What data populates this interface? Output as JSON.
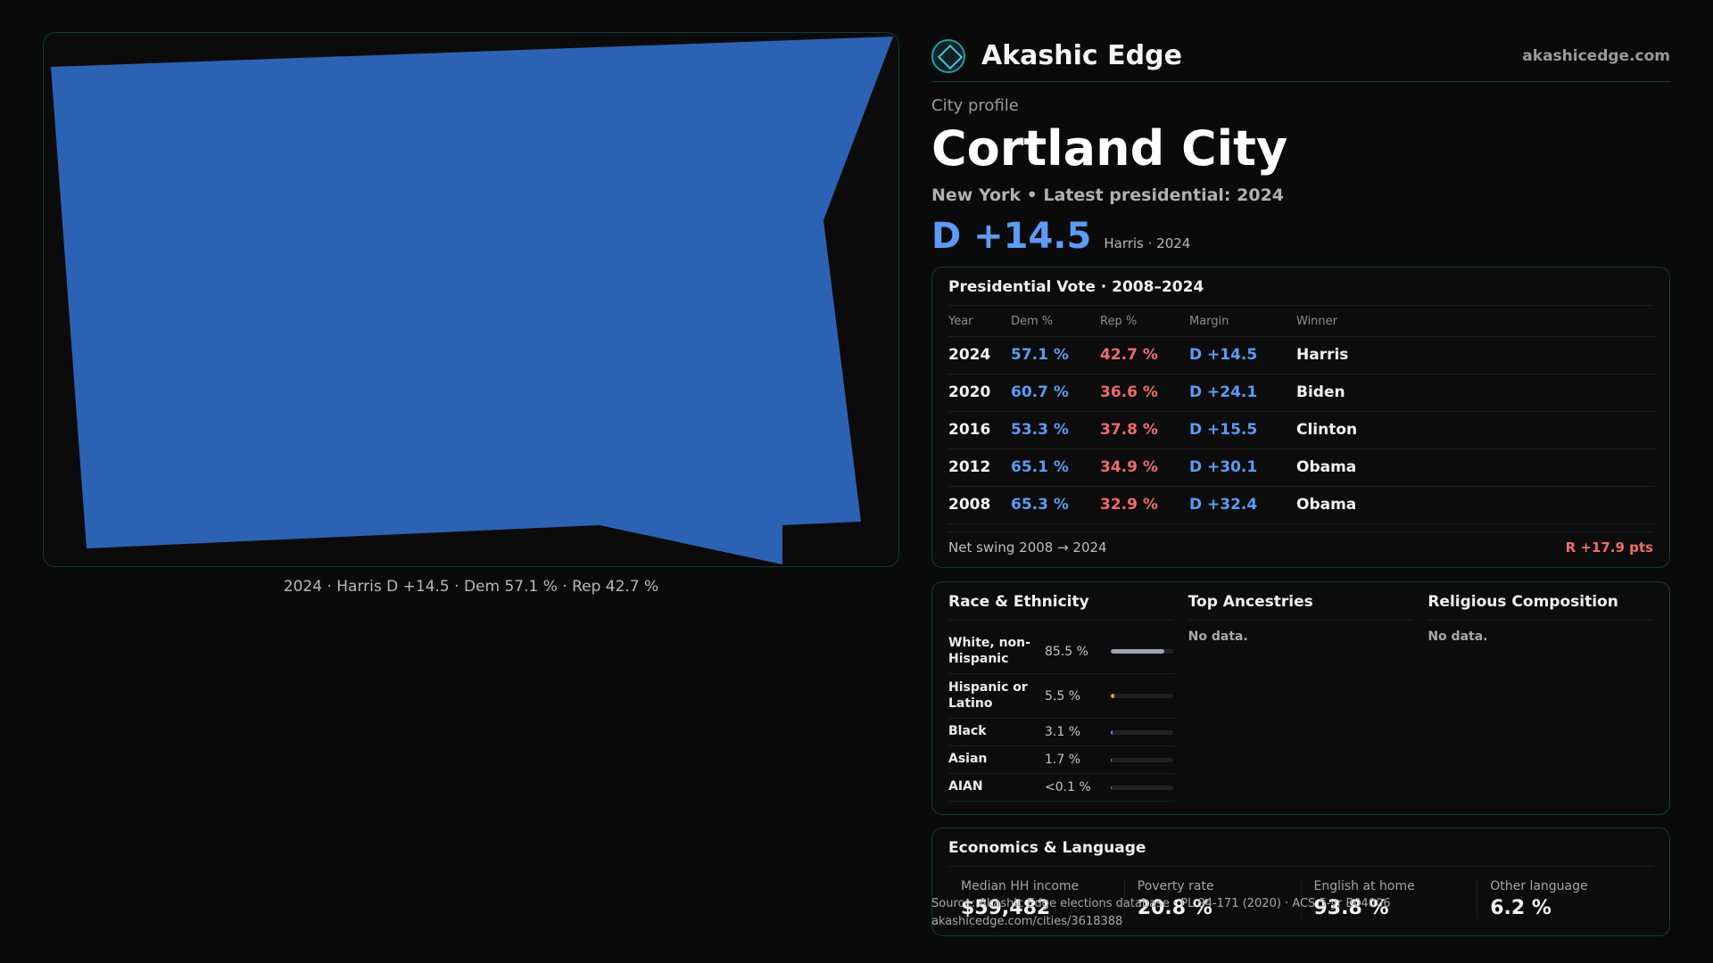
{
  "brand": {
    "name": "Akashic Edge",
    "site": "akashicedge.com",
    "logo": "akashic-logo-icon"
  },
  "header": {
    "eyebrow": "City profile",
    "city": "Cortland City",
    "subline": "New York • Latest presidential: 2024",
    "margin": "D +14.5",
    "margin_note": "Harris · 2024"
  },
  "map": {
    "fill_color": "#2c62b4",
    "caption": "2024 · Harris D +14.5 · Dem 57.1 % · Rep 42.7 %"
  },
  "vote_table": {
    "title": "Presidential Vote · 2008–2024",
    "headers": [
      "Year",
      "Dem %",
      "Rep %",
      "Margin",
      "Winner"
    ],
    "rows": [
      {
        "year": "2024",
        "dem": "57.1 %",
        "rep": "42.7 %",
        "margin": "D +14.5",
        "winner": "Harris"
      },
      {
        "year": "2020",
        "dem": "60.7 %",
        "rep": "36.6 %",
        "margin": "D +24.1",
        "winner": "Biden"
      },
      {
        "year": "2016",
        "dem": "53.3 %",
        "rep": "37.8 %",
        "margin": "D +15.5",
        "winner": "Clinton"
      },
      {
        "year": "2012",
        "dem": "65.1 %",
        "rep": "34.9 %",
        "margin": "D +30.1",
        "winner": "Obama"
      },
      {
        "year": "2008",
        "dem": "65.3 %",
        "rep": "32.9 %",
        "margin": "D +32.4",
        "winner": "Obama"
      }
    ],
    "swing_label": "Net swing 2008 → 2024",
    "swing_value": "R +17.9 pts"
  },
  "race": {
    "title": "Race & Ethnicity",
    "items": [
      {
        "name": "White, non-Hispanic",
        "pct": "85.5 %",
        "value": 85.5,
        "color": "#9aa3ad"
      },
      {
        "name": "Hispanic or Latino",
        "pct": "5.5 %",
        "value": 5.5,
        "color": "#e0a030"
      },
      {
        "name": "Black",
        "pct": "3.1 %",
        "value": 3.1,
        "color": "#8a7cf0"
      },
      {
        "name": "Asian",
        "pct": "1.7 %",
        "value": 1.7,
        "color": "#3fb89a"
      },
      {
        "name": "AIAN",
        "pct": "<0.1 %",
        "value": 0.05,
        "color": "#c46a5a"
      }
    ]
  },
  "ancestries": {
    "title": "Top Ancestries",
    "empty": "No data."
  },
  "religion": {
    "title": "Religious Composition",
    "empty": "No data."
  },
  "economics": {
    "title": "Economics & Language",
    "items": [
      {
        "label": "Median HH income",
        "value": "$59,482"
      },
      {
        "label": "Poverty rate",
        "value": "20.8 %"
      },
      {
        "label": "English at home",
        "value": "93.8 %"
      },
      {
        "label": "Other language",
        "value": "6.2 %"
      }
    ]
  },
  "source": {
    "line1": "Source: Akashic Edge elections database · PL 94-171 (2020) · ACS 5-yr B04006",
    "line2": "akashicedge.com/cities/3618388"
  }
}
